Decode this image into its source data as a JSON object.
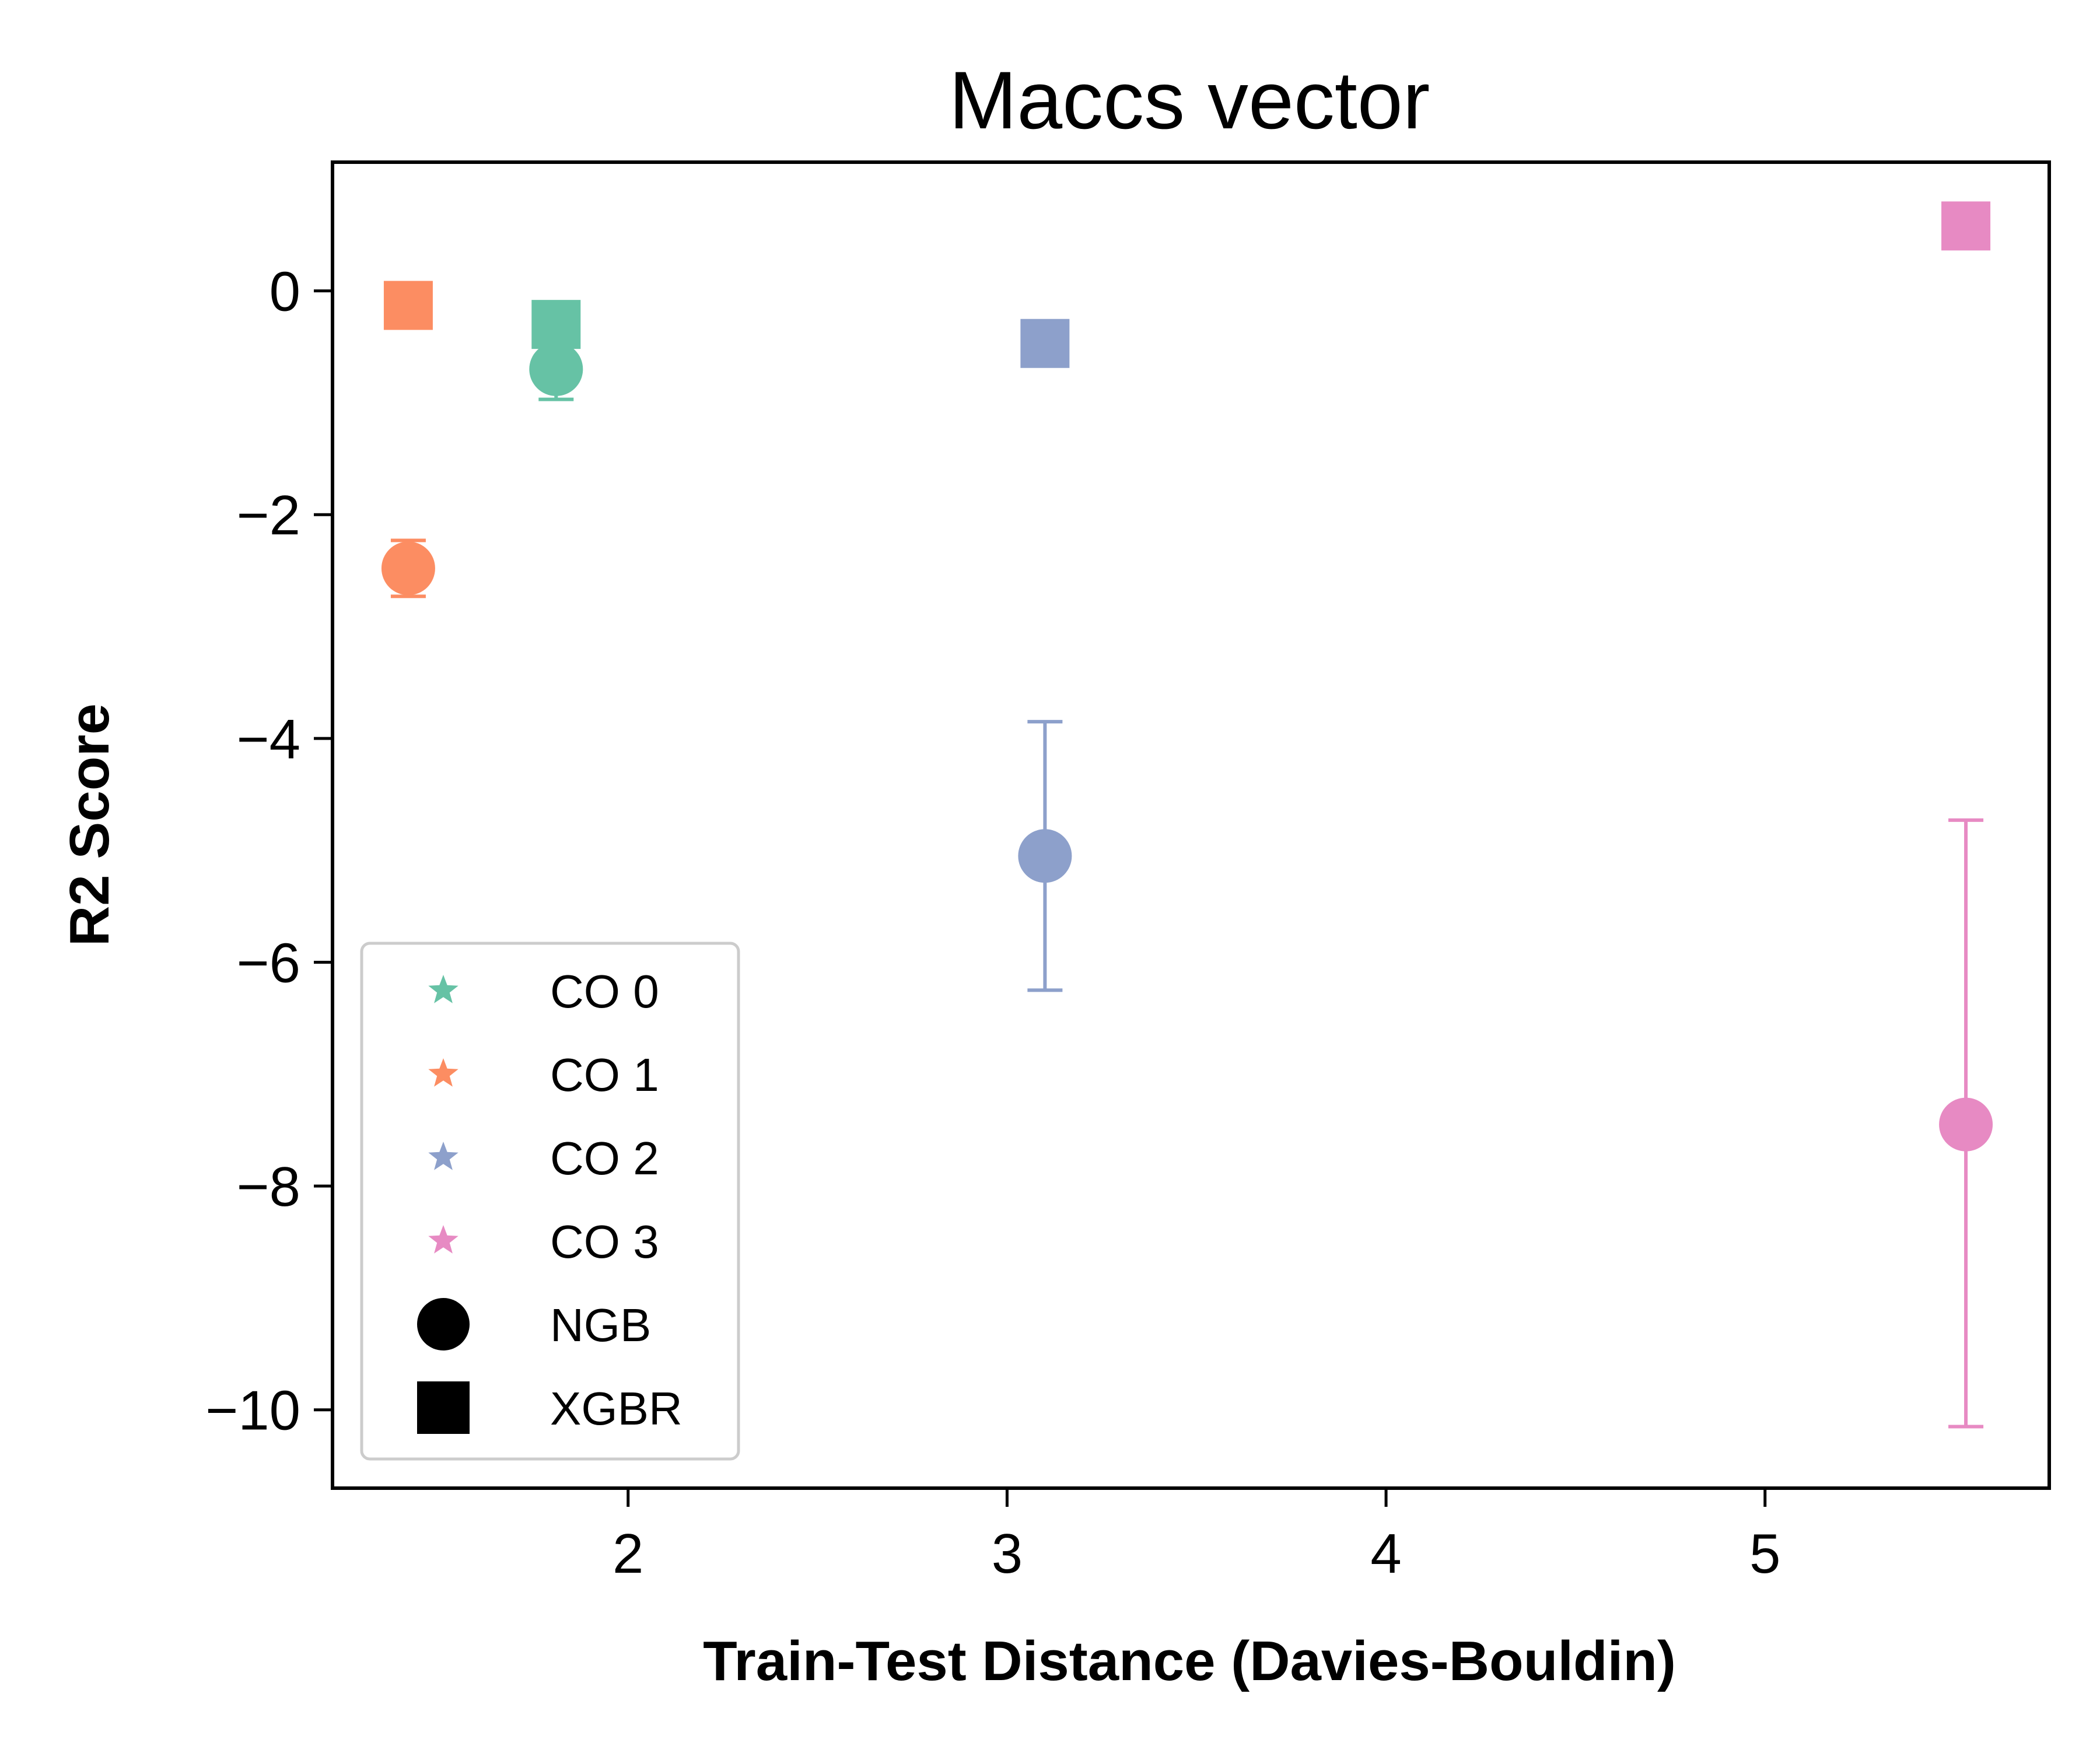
{
  "chart_data": {
    "type": "scatter",
    "title": "Maccs vector",
    "xlabel": "Train-Test Distance (Davies-Bouldin)",
    "ylabel": "R2 Score",
    "xlim": [
      1.22,
      5.75
    ],
    "ylim": [
      -10.7,
      1.15
    ],
    "xticks": [
      2,
      3,
      4,
      5
    ],
    "yticks": [
      0,
      -2,
      -4,
      -6,
      -8,
      -10
    ],
    "xtick_labels": [
      "2",
      "3",
      "4",
      "5"
    ],
    "ytick_labels": [
      "0",
      "−2",
      "−4",
      "−6",
      "−8",
      "−10"
    ],
    "grid": false,
    "legend_position": "lower-left",
    "series": [
      {
        "name": "CO 0",
        "color": "#66c2a5",
        "x": 1.81,
        "ngb": {
          "y": -0.7,
          "err_low": -0.97,
          "err_high": -0.45
        },
        "xgbr": {
          "y": -0.3
        }
      },
      {
        "name": "CO 1",
        "color": "#fc8d62",
        "x": 1.42,
        "ngb": {
          "y": -2.48,
          "err_low": -2.73,
          "err_high": -2.23
        },
        "xgbr": {
          "y": -0.13
        }
      },
      {
        "name": "CO 2",
        "color": "#8da0cb",
        "x": 3.1,
        "ngb": {
          "y": -5.05,
          "err_low": -6.25,
          "err_high": -3.85
        },
        "xgbr": {
          "y": -0.47
        }
      },
      {
        "name": "CO 3",
        "color": "#e78ac3",
        "x": 5.53,
        "ngb": {
          "y": -7.45,
          "err_low": -10.15,
          "err_high": -4.73
        },
        "xgbr": {
          "y": 0.58
        }
      }
    ],
    "legend": [
      {
        "label": "CO 0",
        "marker": "star",
        "color": "#66c2a5"
      },
      {
        "label": "CO 1",
        "marker": "star",
        "color": "#fc8d62"
      },
      {
        "label": "CO 2",
        "marker": "star",
        "color": "#8da0cb"
      },
      {
        "label": "CO 3",
        "marker": "star",
        "color": "#e78ac3"
      },
      {
        "label": "NGB",
        "marker": "circle",
        "color": "#000000"
      },
      {
        "label": "XGBR",
        "marker": "square",
        "color": "#000000"
      }
    ]
  }
}
